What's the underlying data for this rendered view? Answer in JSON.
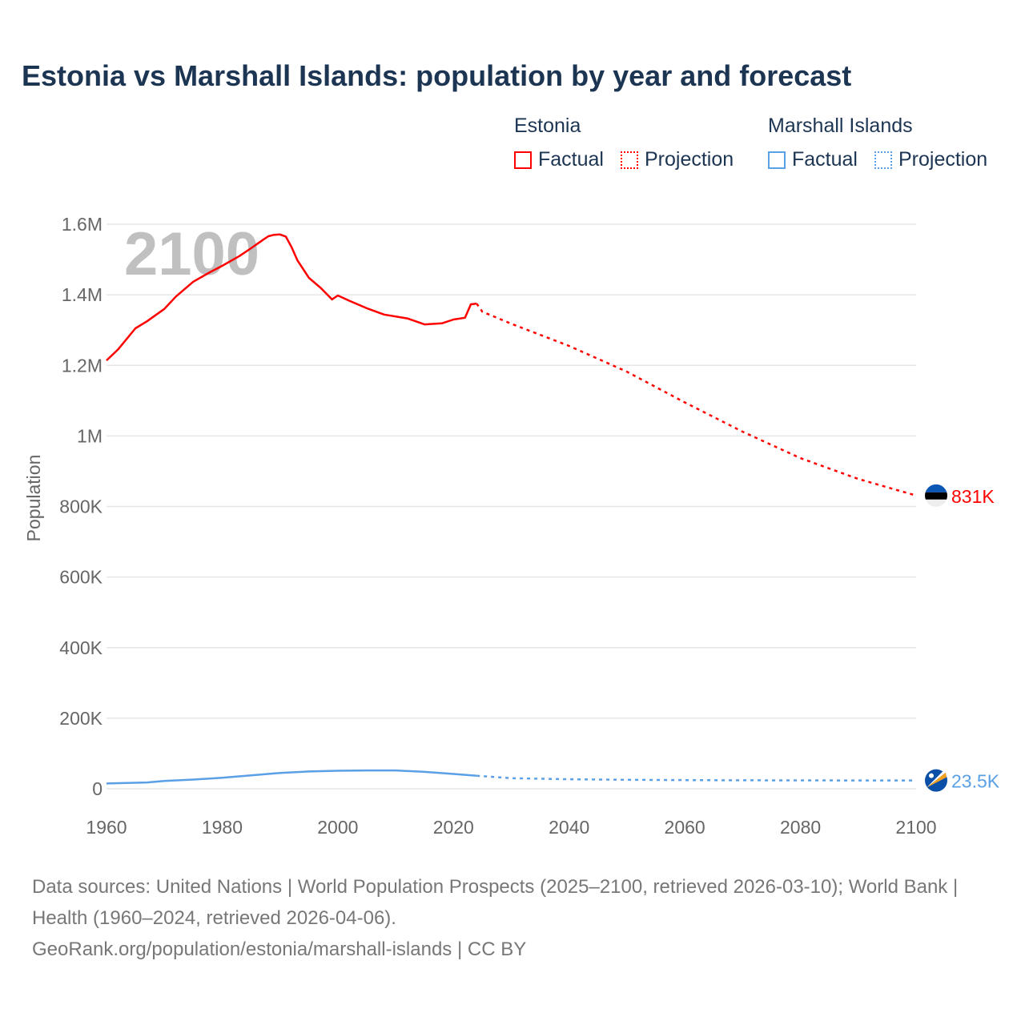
{
  "title": "Estonia vs Marshall Islands: population by year and forecast",
  "legend": {
    "groups": [
      {
        "name": "Estonia",
        "color": "#ff0000",
        "factual": "Factual",
        "projection": "Projection"
      },
      {
        "name": "Marshall Islands",
        "color": "#5aa0e6",
        "factual": "Factual",
        "projection": "Projection"
      }
    ]
  },
  "footer": {
    "sources": "Data sources: United Nations | World Population Prospects (2025–2100, retrieved 2026-03-10); World Bank | Health (1960–2024, retrieved 2026-04-06).",
    "link": "GeoRank.org/population/estonia/marshall-islands | CC BY"
  },
  "chart_data": {
    "type": "line",
    "title": "Estonia vs Marshall Islands: population by year and forecast",
    "xlabel": "",
    "ylabel": "Population",
    "xlim": [
      1960,
      2100
    ],
    "ylim": [
      0,
      1600000
    ],
    "x_ticks": [
      1960,
      1980,
      2000,
      2020,
      2040,
      2060,
      2080,
      2100
    ],
    "x_tick_labels": [
      "1960",
      "1980",
      "2000",
      "2020",
      "2040",
      "2060",
      "2080",
      "2100"
    ],
    "y_ticks": [
      0,
      200000,
      400000,
      600000,
      800000,
      1000000,
      1200000,
      1400000,
      1600000
    ],
    "y_tick_labels": [
      "0",
      "200K",
      "400K",
      "600K",
      "800K",
      "1M",
      "1.2M",
      "1.4M",
      "1.6M"
    ],
    "grid": true,
    "year_watermark": "2100",
    "series": [
      {
        "name": "Estonia",
        "color": "#ff0000",
        "end_label": "831K",
        "factual": {
          "x": [
            1960,
            1962,
            1965,
            1967,
            1970,
            1972,
            1975,
            1978,
            1980,
            1983,
            1985,
            1987,
            1988,
            1989,
            1990,
            1991,
            1992,
            1993,
            1995,
            1997,
            1999,
            2000,
            2002,
            2005,
            2008,
            2012,
            2015,
            2018,
            2020,
            2022,
            2023,
            2024
          ],
          "y": [
            1214000,
            1245000,
            1305000,
            1325000,
            1360000,
            1395000,
            1437000,
            1465000,
            1482000,
            1510000,
            1532000,
            1555000,
            1566000,
            1570000,
            1571000,
            1565000,
            1535000,
            1498000,
            1448000,
            1420000,
            1387000,
            1398000,
            1383000,
            1362000,
            1344000,
            1333000,
            1316000,
            1319000,
            1330000,
            1335000,
            1373000,
            1375000
          ]
        },
        "projection": {
          "x": [
            2024,
            2025,
            2030,
            2040,
            2050,
            2060,
            2070,
            2080,
            2090,
            2100
          ],
          "y": [
            1375000,
            1352000,
            1318000,
            1255000,
            1182000,
            1095000,
            1012000,
            937000,
            878000,
            831000
          ]
        }
      },
      {
        "name": "Marshall Islands",
        "color": "#5aa0e6",
        "end_label": "23.5K",
        "factual": {
          "x": [
            1960,
            1967,
            1970,
            1975,
            1980,
            1985,
            1990,
            1995,
            2000,
            2005,
            2010,
            2015,
            2020,
            2024
          ],
          "y": [
            15000,
            18000,
            22000,
            26000,
            31000,
            38000,
            45000,
            49000,
            51000,
            52000,
            52000,
            48000,
            42000,
            37000
          ]
        },
        "projection": {
          "x": [
            2024,
            2030,
            2040,
            2050,
            2060,
            2070,
            2080,
            2090,
            2100
          ],
          "y": [
            37000,
            30000,
            27000,
            25500,
            24500,
            24000,
            23800,
            23600,
            23500
          ]
        }
      }
    ]
  }
}
